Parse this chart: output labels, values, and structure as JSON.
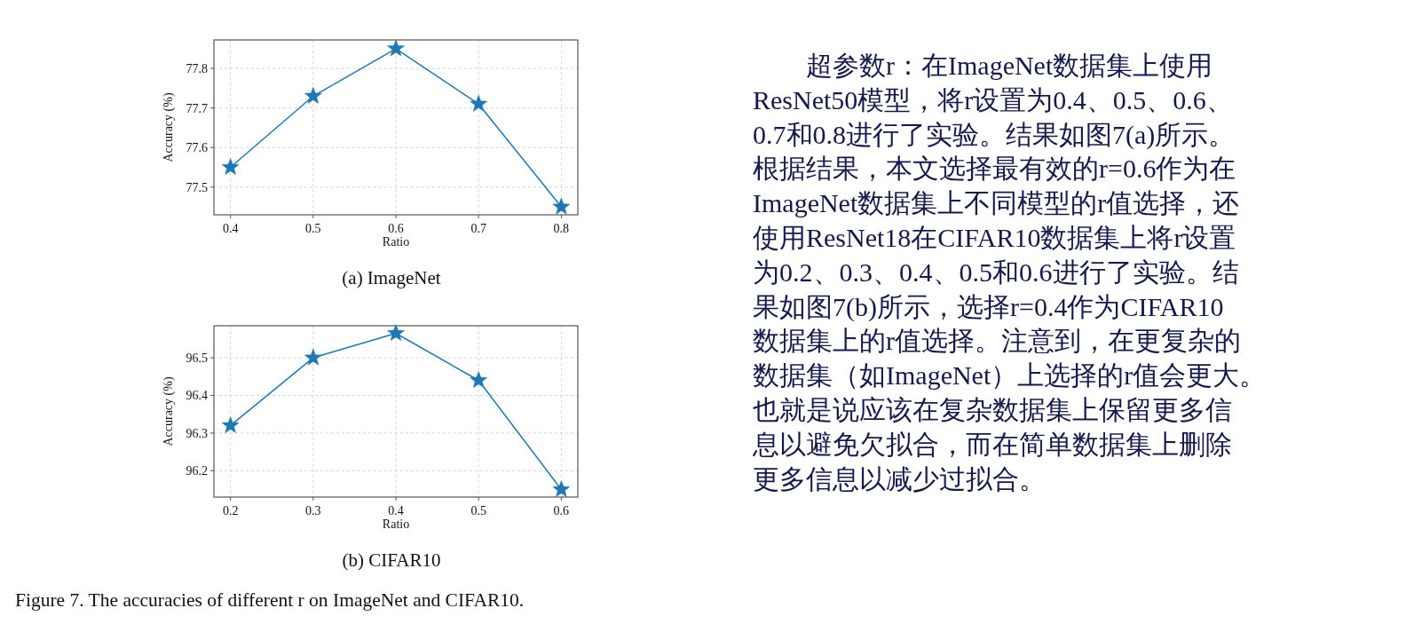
{
  "chart_data": [
    {
      "type": "line",
      "title": "(a)  ImageNet",
      "xlabel": "Ratio",
      "ylabel": "Accuracy (%)",
      "x": [
        0.4,
        0.5,
        0.6,
        0.7,
        0.8
      ],
      "series": [
        {
          "color": "#1f77b4",
          "values": [
            77.55,
            77.73,
            77.85,
            77.71,
            77.45
          ]
        }
      ],
      "xlim": [
        0.38,
        0.82
      ],
      "xticks": [
        0.4,
        0.5,
        0.6,
        0.7,
        0.8
      ],
      "ylim": [
        77.43,
        77.872
      ],
      "yticks": [
        77.5,
        77.6,
        77.7,
        77.8
      ],
      "grid": true,
      "marker": "star",
      "line_style": "solid"
    },
    {
      "type": "line",
      "title": "(b)  CIFAR10",
      "xlabel": "Ratio",
      "ylabel": "Accuracy (%)",
      "x": [
        0.2,
        0.3,
        0.4,
        0.5,
        0.6
      ],
      "series": [
        {
          "color": "#1f77b4",
          "values": [
            96.32,
            96.5,
            96.565,
            96.44,
            96.15
          ]
        }
      ],
      "xlim": [
        0.18,
        0.62
      ],
      "xticks": [
        0.2,
        0.3,
        0.4,
        0.5,
        0.6
      ],
      "ylim": [
        96.13,
        96.585
      ],
      "yticks": [
        96.2,
        96.3,
        96.4,
        96.5
      ],
      "grid": true,
      "marker": "star",
      "line_style": "solid",
      "annotations": [
        "Figure 7. The accuracies of different r on ImageNet and CIFAR10."
      ]
    },
    {
      "type": "other",
      "annotations": [
        "　　超参数r：在ImageNet数据集上使用",
        "ResNet50模型，将r设置为0.4、0.5、0.6、",
        "0.7和0.8进行了实验。结果如图7(a)所示。",
        "根据结果，本文选择最有效的r=0.6作为在",
        "ImageNet数据集上不同模型的r值选择，还",
        "使用ResNet18在CIFAR10数据集上将r设置",
        "为0.2、0.3、0.4、0.5和0.6进行了实验。结",
        "果如图7(b)所示，选择r=0.4作为CIFAR10",
        "数据集上的r值选择。注意到，在更复杂的",
        "数据集（如ImageNet）上选择的r值会更大。",
        "也就是说应该在复杂数据集上保留更多信",
        "息以避免欠拟合，而在简单数据集上删除",
        "更多信息以减少过拟合。"
      ]
    }
  ]
}
